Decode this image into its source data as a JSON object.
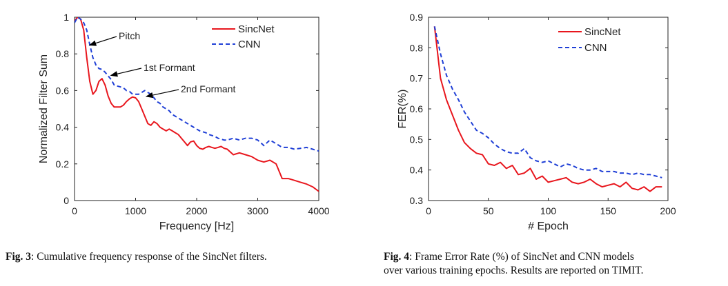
{
  "colors": {
    "sincnet": "#e8161d",
    "cnn": "#1f3fd6",
    "axis": "#222222"
  },
  "captions": {
    "fig3_label": "Fig. 3",
    "fig3_text": ": Cumulative frequency response of the SincNet filters.",
    "fig4_label": "Fig. 4",
    "fig4_text_line1": ":  Frame Error Rate (%) of SincNet and CNN models",
    "fig4_text_line2": "over various training epochs. Results are reported on TIMIT."
  },
  "chart_data": [
    {
      "type": "line",
      "title": "",
      "xlabel": "Frequency [Hz]",
      "ylabel": "Normalized Filter Sum",
      "xlim": [
        0,
        4000
      ],
      "ylim": [
        0,
        1
      ],
      "xticks": [
        0,
        1000,
        2000,
        3000,
        4000
      ],
      "yticks": [
        0,
        0.2,
        0.4,
        0.6,
        0.8,
        1
      ],
      "ytick_labels": [
        "0",
        "0.2",
        "0.4",
        "0.6",
        "0.8",
        "1"
      ],
      "legend": "top-right",
      "series": [
        {
          "name": "SincNet",
          "style": "solid",
          "x": [
            0,
            50,
            100,
            150,
            200,
            250,
            300,
            350,
            400,
            450,
            500,
            550,
            600,
            650,
            700,
            750,
            800,
            850,
            900,
            950,
            1000,
            1050,
            1100,
            1150,
            1200,
            1250,
            1300,
            1350,
            1400,
            1450,
            1500,
            1550,
            1600,
            1650,
            1700,
            1750,
            1800,
            1850,
            1900,
            1950,
            2000,
            2050,
            2100,
            2150,
            2200,
            2250,
            2300,
            2350,
            2400,
            2450,
            2500,
            2600,
            2700,
            2800,
            2900,
            3000,
            3100,
            3200,
            3300,
            3400,
            3500,
            3600,
            3700,
            3800,
            3900,
            4000
          ],
          "y": [
            0.98,
            1.0,
            0.99,
            0.93,
            0.78,
            0.65,
            0.58,
            0.6,
            0.65,
            0.665,
            0.63,
            0.57,
            0.53,
            0.51,
            0.51,
            0.51,
            0.52,
            0.54,
            0.555,
            0.565,
            0.56,
            0.54,
            0.5,
            0.46,
            0.42,
            0.41,
            0.43,
            0.42,
            0.4,
            0.39,
            0.38,
            0.39,
            0.38,
            0.37,
            0.36,
            0.34,
            0.32,
            0.3,
            0.32,
            0.325,
            0.3,
            0.285,
            0.28,
            0.29,
            0.295,
            0.29,
            0.285,
            0.29,
            0.295,
            0.285,
            0.28,
            0.25,
            0.26,
            0.25,
            0.24,
            0.22,
            0.21,
            0.22,
            0.2,
            0.12,
            0.12,
            0.11,
            0.1,
            0.09,
            0.075,
            0.05
          ]
        },
        {
          "name": "CNN",
          "style": "dashed",
          "x": [
            0,
            50,
            100,
            150,
            200,
            250,
            300,
            350,
            400,
            450,
            500,
            550,
            600,
            650,
            700,
            750,
            800,
            850,
            900,
            950,
            1000,
            1050,
            1100,
            1150,
            1200,
            1250,
            1300,
            1350,
            1400,
            1450,
            1500,
            1550,
            1600,
            1650,
            1700,
            1750,
            1800,
            1850,
            1900,
            1950,
            2000,
            2050,
            2100,
            2150,
            2200,
            2250,
            2300,
            2350,
            2400,
            2450,
            2500,
            2600,
            2700,
            2800,
            2900,
            3000,
            3100,
            3200,
            3300,
            3400,
            3500,
            3600,
            3700,
            3800,
            3900,
            4000
          ],
          "y": [
            0.97,
            1.0,
            0.99,
            0.97,
            0.93,
            0.85,
            0.78,
            0.74,
            0.72,
            0.715,
            0.7,
            0.68,
            0.66,
            0.63,
            0.625,
            0.62,
            0.615,
            0.6,
            0.595,
            0.58,
            0.58,
            0.58,
            0.59,
            0.6,
            0.59,
            0.58,
            0.56,
            0.54,
            0.53,
            0.51,
            0.5,
            0.49,
            0.47,
            0.46,
            0.45,
            0.44,
            0.43,
            0.42,
            0.41,
            0.4,
            0.39,
            0.38,
            0.375,
            0.37,
            0.36,
            0.355,
            0.35,
            0.34,
            0.335,
            0.33,
            0.33,
            0.34,
            0.33,
            0.34,
            0.34,
            0.33,
            0.3,
            0.33,
            0.31,
            0.29,
            0.29,
            0.28,
            0.285,
            0.29,
            0.28,
            0.27
          ]
        }
      ],
      "annotations": [
        {
          "text": "Pitch",
          "target_x": 200,
          "target_y": 0.84
        },
        {
          "text": "1st Formant",
          "target_x": 550,
          "target_y": 0.675
        },
        {
          "text": "2nd Formant",
          "target_x": 1130,
          "target_y": 0.56
        }
      ]
    },
    {
      "type": "line",
      "title": "",
      "xlabel": "# Epoch",
      "ylabel": "FER(%)",
      "xlim": [
        0,
        200
      ],
      "ylim": [
        0.3,
        0.9
      ],
      "xticks": [
        0,
        50,
        100,
        150,
        200
      ],
      "yticks": [
        0.3,
        0.4,
        0.5,
        0.6,
        0.7,
        0.8,
        0.9
      ],
      "ytick_labels": [
        "0.3",
        "0.4",
        "0.5",
        "0.6",
        "0.7",
        "0.8",
        "0.9"
      ],
      "legend": "top-right",
      "series": [
        {
          "name": "SincNet",
          "style": "solid",
          "x": [
            5,
            10,
            15,
            20,
            25,
            30,
            35,
            40,
            45,
            50,
            55,
            60,
            65,
            70,
            75,
            80,
            85,
            90,
            95,
            100,
            105,
            110,
            115,
            120,
            125,
            130,
            135,
            140,
            145,
            150,
            155,
            160,
            165,
            170,
            175,
            180,
            185,
            190,
            195
          ],
          "y": [
            0.87,
            0.7,
            0.63,
            0.58,
            0.53,
            0.49,
            0.47,
            0.455,
            0.45,
            0.42,
            0.415,
            0.425,
            0.405,
            0.415,
            0.385,
            0.39,
            0.405,
            0.37,
            0.38,
            0.36,
            0.365,
            0.37,
            0.375,
            0.36,
            0.355,
            0.36,
            0.37,
            0.355,
            0.345,
            0.35,
            0.355,
            0.345,
            0.36,
            0.34,
            0.335,
            0.345,
            0.33,
            0.345,
            0.345
          ]
        },
        {
          "name": "CNN",
          "style": "dashed",
          "x": [
            5,
            10,
            15,
            20,
            25,
            30,
            35,
            40,
            45,
            50,
            55,
            60,
            65,
            70,
            75,
            80,
            85,
            90,
            95,
            100,
            105,
            110,
            115,
            120,
            125,
            130,
            135,
            140,
            145,
            150,
            155,
            160,
            165,
            170,
            175,
            180,
            185,
            190,
            195
          ],
          "y": [
            0.87,
            0.78,
            0.71,
            0.665,
            0.63,
            0.59,
            0.56,
            0.53,
            0.52,
            0.505,
            0.485,
            0.47,
            0.46,
            0.455,
            0.455,
            0.47,
            0.44,
            0.43,
            0.425,
            0.43,
            0.42,
            0.41,
            0.42,
            0.415,
            0.405,
            0.4,
            0.4,
            0.405,
            0.395,
            0.395,
            0.395,
            0.39,
            0.39,
            0.385,
            0.39,
            0.385,
            0.385,
            0.38,
            0.375
          ]
        }
      ],
      "annotations": []
    }
  ]
}
